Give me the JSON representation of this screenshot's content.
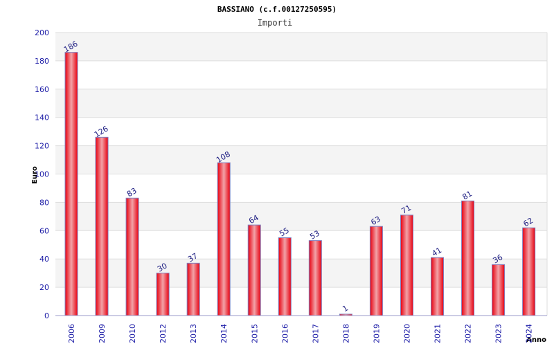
{
  "chart_data": {
    "type": "bar",
    "title": "BASSIANO (c.f.00127250595)",
    "subtitle": "Importi",
    "xlabel": "Anno",
    "ylabel": "Euro",
    "ylim": [
      0,
      200
    ],
    "yticks": [
      0,
      20,
      40,
      60,
      80,
      100,
      120,
      140,
      160,
      180,
      200
    ],
    "grid": true,
    "categories": [
      "2006",
      "2009",
      "2010",
      "2012",
      "2013",
      "2014",
      "2015",
      "2016",
      "2017",
      "2018",
      "2019",
      "2020",
      "2021",
      "2022",
      "2023",
      "2024"
    ],
    "values": [
      186,
      126,
      83,
      30,
      37,
      108,
      64,
      55,
      53,
      1,
      63,
      71,
      41,
      81,
      36,
      62
    ],
    "colors": {
      "bar_center": "#f2a3a8",
      "bar_edge": "#e8000f",
      "bar_outline": "#8080c0",
      "band_light": "#f4f4f4",
      "band_white": "#ffffff"
    }
  }
}
